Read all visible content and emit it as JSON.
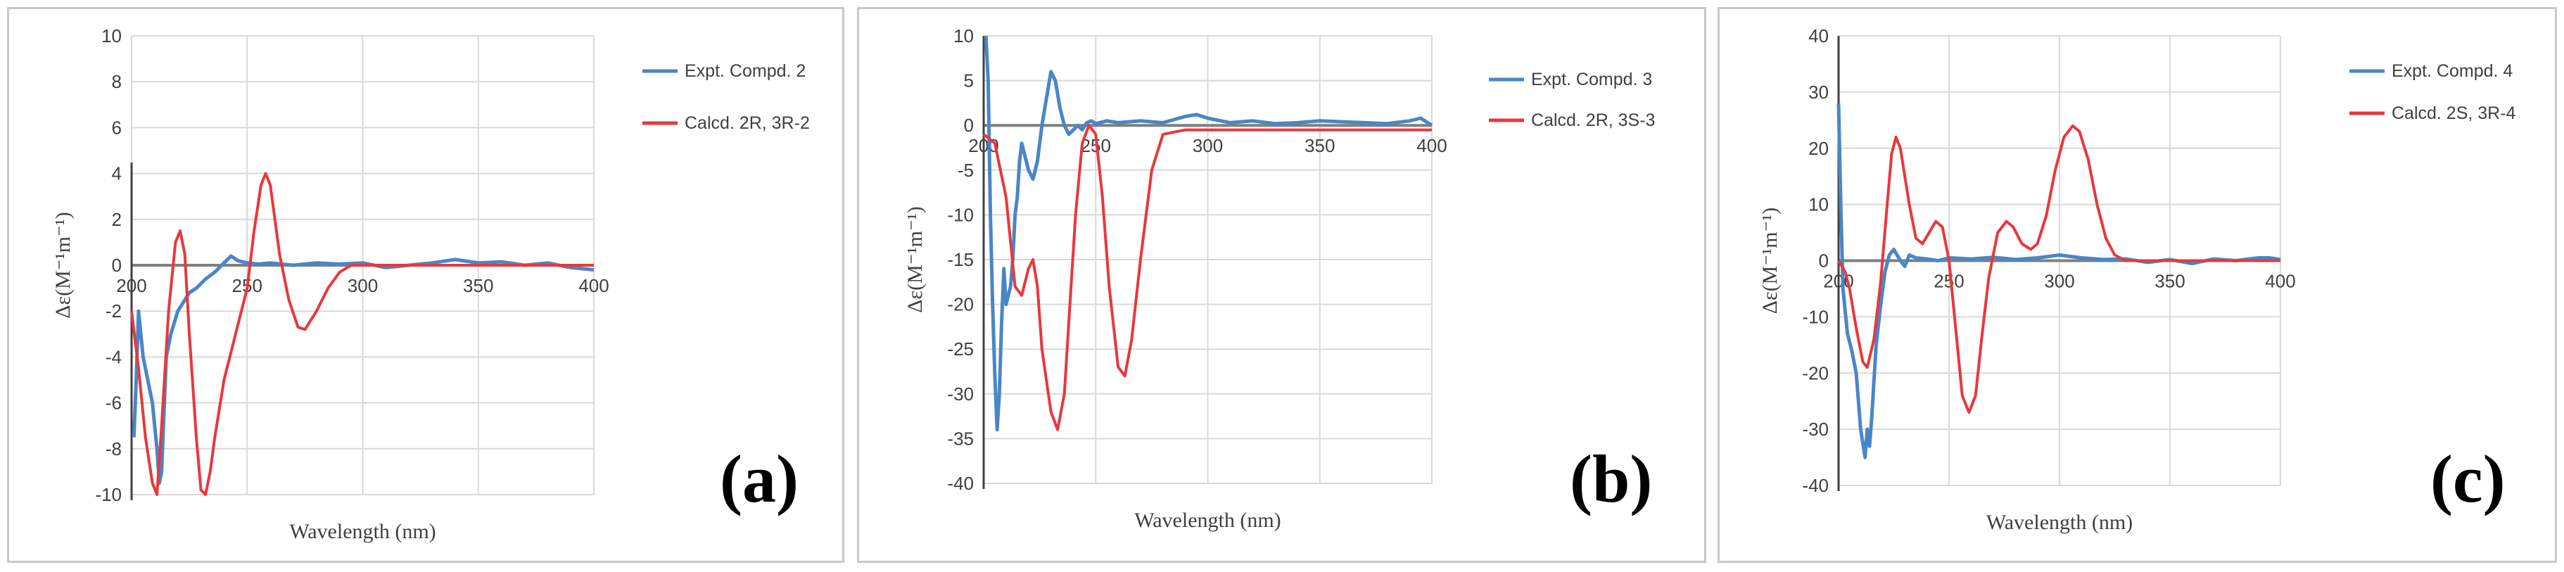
{
  "chart_data": [
    {
      "type": "line",
      "panel_label": "(a)",
      "xlabel": "Wavelength (nm)",
      "ylabel": "Δε(M⁻¹m⁻¹)",
      "xlim": [
        200,
        400
      ],
      "ylim": [
        -10,
        10
      ],
      "x_ticks": [
        "200",
        "250",
        "300",
        "350",
        "400"
      ],
      "y_ticks": [
        "10",
        "8",
        "6",
        "4",
        "2",
        "0",
        "-2",
        "-4",
        "-6",
        "-8",
        "-10"
      ],
      "grid": true,
      "legend_position": "top-right",
      "series": [
        {
          "name": "Expt. Compd. 2",
          "color": "#4a86c5",
          "x": [
            201,
            202,
            203,
            204,
            205,
            207,
            209,
            211,
            212,
            213,
            215,
            217,
            220,
            225,
            228,
            232,
            236,
            240,
            243,
            246,
            250,
            255,
            260,
            265,
            270,
            280,
            290,
            300,
            310,
            320,
            330,
            340,
            350,
            360,
            370,
            380,
            390,
            400
          ],
          "y": [
            -7.5,
            -5,
            -2,
            -3,
            -4,
            -5,
            -6,
            -8,
            -9.5,
            -9,
            -4,
            -3,
            -2,
            -1.2,
            -1,
            -0.6,
            -0.3,
            0.1,
            0.4,
            0.2,
            0.1,
            0.05,
            0.1,
            0.05,
            0.0,
            0.1,
            0.05,
            0.1,
            -0.1,
            0.0,
            0.1,
            0.25,
            0.1,
            0.15,
            0.0,
            0.1,
            -0.1,
            -0.2
          ]
        },
        {
          "name": "Calcd. 2R, 3R-2",
          "color": "#e8383d",
          "x": [
            200,
            203,
            206,
            209,
            211,
            213,
            216,
            219,
            221,
            223,
            225,
            228,
            230,
            232,
            234,
            236,
            240,
            245,
            250,
            253,
            256,
            258,
            260,
            262,
            264,
            268,
            272,
            275,
            280,
            285,
            290,
            295,
            300,
            320,
            350,
            400
          ],
          "y": [
            -2,
            -4.5,
            -7.5,
            -9.5,
            -10,
            -7,
            -2,
            1,
            1.5,
            0.5,
            -3,
            -7.5,
            -9.8,
            -10,
            -9,
            -7.5,
            -5,
            -3,
            -1,
            1.5,
            3.5,
            4,
            3.5,
            2,
            0.5,
            -1.5,
            -2.7,
            -2.8,
            -2,
            -1,
            -0.3,
            0,
            0,
            0,
            0,
            0
          ]
        }
      ]
    },
    {
      "type": "line",
      "panel_label": "(b)",
      "xlabel": "Wavelength (nm)",
      "ylabel": "Δε(M⁻¹m⁻¹)",
      "xlim": [
        200,
        400
      ],
      "ylim": [
        -40,
        10
      ],
      "x_ticks": [
        "200",
        "250",
        "300",
        "350",
        "400"
      ],
      "y_ticks": [
        "10",
        "5",
        "0",
        "-5",
        "-10",
        "-15",
        "-20",
        "-25",
        "-30",
        "-35",
        "-40"
      ],
      "grid": true,
      "legend_position": "top-right",
      "series": [
        {
          "name": "Expt. Compd. 3",
          "color": "#4a86c5",
          "x": [
            201,
            202,
            203,
            204,
            205,
            206,
            207,
            208,
            209,
            210,
            212,
            213,
            214,
            215,
            216,
            217,
            218,
            220,
            222,
            224,
            226,
            228,
            230,
            232,
            234,
            236,
            238,
            240,
            242,
            244,
            246,
            248,
            250,
            255,
            260,
            270,
            280,
            290,
            295,
            300,
            310,
            320,
            330,
            340,
            350,
            360,
            370,
            380,
            390,
            395,
            400
          ],
          "y": [
            10,
            5,
            -10,
            -20,
            -28,
            -34,
            -30,
            -22,
            -16,
            -20,
            -18,
            -15,
            -10,
            -8,
            -4,
            -2,
            -3,
            -5,
            -6,
            -4,
            0,
            3,
            6,
            5,
            2,
            0,
            -1,
            -0.5,
            0,
            -0.5,
            0.3,
            0.5,
            0.2,
            0.5,
            0.3,
            0.5,
            0.3,
            1,
            1.2,
            0.8,
            0.3,
            0.5,
            0.2,
            0.3,
            0.5,
            0.4,
            0.3,
            0.2,
            0.5,
            0.8,
            0.0
          ]
        },
        {
          "name": "Calcd. 2R, 3S-3",
          "color": "#e8383d",
          "x": [
            200,
            205,
            210,
            214,
            217,
            220,
            222,
            224,
            226,
            230,
            233,
            236,
            238,
            241,
            244,
            247,
            250,
            253,
            256,
            260,
            263,
            266,
            270,
            275,
            280,
            290,
            300,
            350,
            400
          ],
          "y": [
            -1,
            -2,
            -8,
            -18,
            -19,
            -16,
            -15,
            -18,
            -25,
            -32,
            -34,
            -30,
            -22,
            -10,
            -2,
            0,
            -1,
            -8,
            -18,
            -27,
            -28,
            -24,
            -15,
            -5,
            -1,
            -0.5,
            -0.5,
            -0.5,
            -0.5
          ]
        }
      ]
    },
    {
      "type": "line",
      "panel_label": "(c)",
      "xlabel": "Wavelength (nm)",
      "ylabel": "Δε(M⁻¹m⁻¹)",
      "xlim": [
        200,
        400
      ],
      "ylim": [
        -40,
        40
      ],
      "x_ticks": [
        "200",
        "250",
        "300",
        "350",
        "400"
      ],
      "y_ticks": [
        "40",
        "30",
        "20",
        "10",
        "0",
        "-10",
        "-20",
        "-30",
        "-40"
      ],
      "grid": true,
      "legend_position": "top-right",
      "series": [
        {
          "name": "Expt. Compd. 4",
          "color": "#4a86c5",
          "x": [
            200,
            201,
            202,
            204,
            206,
            208,
            210,
            212,
            213,
            214,
            215,
            217,
            219,
            221,
            223,
            225,
            228,
            230,
            232,
            235,
            240,
            245,
            250,
            260,
            270,
            280,
            290,
            300,
            310,
            320,
            330,
            340,
            350,
            360,
            370,
            380,
            390,
            395,
            400
          ],
          "y": [
            28,
            10,
            -5,
            -13,
            -16,
            -20,
            -30,
            -35,
            -30,
            -33,
            -28,
            -15,
            -8,
            -2,
            1,
            2,
            0,
            -1,
            1,
            0.5,
            0.3,
            0,
            0.5,
            0.3,
            0.6,
            0.2,
            0.5,
            1,
            0.5,
            0.2,
            0.3,
            -0.3,
            0.2,
            -0.5,
            0.3,
            0,
            0.5,
            0.5,
            0.2
          ]
        },
        {
          "name": "Calcd. 2S, 3R-4",
          "color": "#e8383d",
          "x": [
            200,
            203,
            205,
            208,
            211,
            213,
            216,
            219,
            222,
            224,
            226,
            228,
            232,
            235,
            238,
            241,
            244,
            247,
            250,
            253,
            256,
            259,
            262,
            265,
            268,
            272,
            276,
            279,
            283,
            287,
            290,
            294,
            298,
            302,
            306,
            309,
            313,
            317,
            321,
            325,
            330,
            335,
            340,
            350,
            400
          ],
          "y": [
            0,
            -2,
            -5,
            -12,
            -18,
            -19,
            -14,
            -4,
            10,
            19,
            22,
            20,
            10,
            4,
            3,
            5,
            7,
            6,
            0,
            -12,
            -24,
            -27,
            -24,
            -13,
            -3,
            5,
            7,
            6,
            3,
            2,
            3,
            8,
            16,
            22,
            24,
            23,
            18,
            10,
            4,
            1,
            0,
            0,
            0,
            0,
            0
          ]
        }
      ]
    }
  ]
}
